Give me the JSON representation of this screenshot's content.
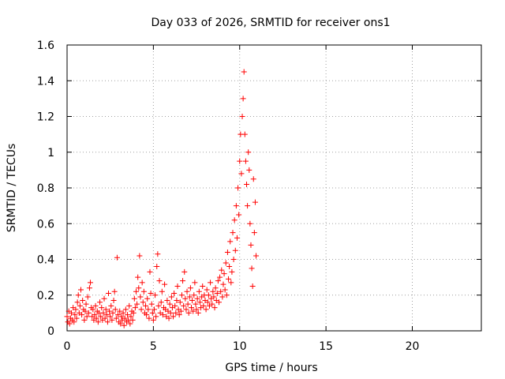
{
  "chart_data": {
    "type": "scatter",
    "title": "Day 033 of 2026, SRMTID for receiver ons1",
    "xlabel": "GPS time / hours",
    "ylabel": "SRMTID / TECUs",
    "xlim": [
      0,
      24
    ],
    "ylim": [
      0,
      1.6
    ],
    "xticks": [
      0,
      5,
      10,
      15,
      20
    ],
    "xtick_labels": [
      "0",
      "5",
      "10",
      "15",
      "20"
    ],
    "yticks": [
      0,
      0.2,
      0.4,
      0.6,
      0.8,
      1.0,
      1.2,
      1.4,
      1.6
    ],
    "ytick_labels": [
      "0",
      "0.2",
      "0.4",
      "0.6",
      "0.8",
      "1",
      "1.2",
      "1.4",
      "1.6"
    ],
    "grid": true,
    "marker": "+",
    "color": "#ff0000",
    "series": [
      {
        "name": "SRMTID",
        "points": [
          [
            0.0,
            0.08
          ],
          [
            0.05,
            0.05
          ],
          [
            0.1,
            0.11
          ],
          [
            0.15,
            0.04
          ],
          [
            0.2,
            0.07
          ],
          [
            0.25,
            0.1
          ],
          [
            0.3,
            0.06
          ],
          [
            0.35,
            0.13
          ],
          [
            0.4,
            0.05
          ],
          [
            0.45,
            0.09
          ],
          [
            0.5,
            0.12
          ],
          [
            0.55,
            0.07
          ],
          [
            0.6,
            0.16
          ],
          [
            0.65,
            0.2
          ],
          [
            0.7,
            0.1
          ],
          [
            0.75,
            0.14
          ],
          [
            0.8,
            0.23
          ],
          [
            0.85,
            0.09
          ],
          [
            0.9,
            0.17
          ],
          [
            0.95,
            0.12
          ],
          [
            1.0,
            0.06
          ],
          [
            1.05,
            0.11
          ],
          [
            1.1,
            0.15
          ],
          [
            1.15,
            0.08
          ],
          [
            1.2,
            0.19
          ],
          [
            1.25,
            0.1
          ],
          [
            1.3,
            0.24
          ],
          [
            1.35,
            0.27
          ],
          [
            1.4,
            0.13
          ],
          [
            1.45,
            0.08
          ],
          [
            1.5,
            0.12
          ],
          [
            1.55,
            0.06
          ],
          [
            1.6,
            0.09
          ],
          [
            1.65,
            0.14
          ],
          [
            1.7,
            0.07
          ],
          [
            1.75,
            0.11
          ],
          [
            1.8,
            0.05
          ],
          [
            1.85,
            0.1
          ],
          [
            1.9,
            0.16
          ],
          [
            1.95,
            0.08
          ],
          [
            2.0,
            0.13
          ],
          [
            2.05,
            0.06
          ],
          [
            2.1,
            0.1
          ],
          [
            2.15,
            0.18
          ],
          [
            2.2,
            0.07
          ],
          [
            2.25,
            0.12
          ],
          [
            2.3,
            0.09
          ],
          [
            2.35,
            0.05
          ],
          [
            2.4,
            0.21
          ],
          [
            2.45,
            0.11
          ],
          [
            2.5,
            0.08
          ],
          [
            2.55,
            0.14
          ],
          [
            2.6,
            0.06
          ],
          [
            2.65,
            0.1
          ],
          [
            2.7,
            0.17
          ],
          [
            2.75,
            0.22
          ],
          [
            2.8,
            0.12
          ],
          [
            2.85,
            0.07
          ],
          [
            2.9,
            0.41
          ],
          [
            2.95,
            0.09
          ],
          [
            3.0,
            0.05
          ],
          [
            3.05,
            0.11
          ],
          [
            3.1,
            0.04
          ],
          [
            3.15,
            0.08
          ],
          [
            3.2,
            0.06
          ],
          [
            3.25,
            0.1
          ],
          [
            3.3,
            0.03
          ],
          [
            3.35,
            0.07
          ],
          [
            3.4,
            0.12
          ],
          [
            3.45,
            0.05
          ],
          [
            3.5,
            0.09
          ],
          [
            3.55,
            0.06
          ],
          [
            3.6,
            0.14
          ],
          [
            3.65,
            0.04
          ],
          [
            3.7,
            0.08
          ],
          [
            3.75,
            0.11
          ],
          [
            3.8,
            0.06
          ],
          [
            3.85,
            0.1
          ],
          [
            3.9,
            0.18
          ],
          [
            3.95,
            0.13
          ],
          [
            4.0,
            0.22
          ],
          [
            4.05,
            0.15
          ],
          [
            4.1,
            0.3
          ],
          [
            4.15,
            0.24
          ],
          [
            4.2,
            0.42
          ],
          [
            4.25,
            0.19
          ],
          [
            4.3,
            0.12
          ],
          [
            4.35,
            0.27
          ],
          [
            4.4,
            0.16
          ],
          [
            4.45,
            0.22
          ],
          [
            4.5,
            0.1
          ],
          [
            4.55,
            0.14
          ],
          [
            4.6,
            0.09
          ],
          [
            4.65,
            0.18
          ],
          [
            4.7,
            0.12
          ],
          [
            4.75,
            0.07
          ],
          [
            4.8,
            0.33
          ],
          [
            4.85,
            0.21
          ],
          [
            4.9,
            0.15
          ],
          [
            4.95,
            0.1
          ],
          [
            5.0,
            0.06
          ],
          [
            5.05,
            0.12
          ],
          [
            5.1,
            0.2
          ],
          [
            5.15,
            0.08
          ],
          [
            5.2,
            0.36
          ],
          [
            5.25,
            0.43
          ],
          [
            5.3,
            0.14
          ],
          [
            5.35,
            0.28
          ],
          [
            5.4,
            0.1
          ],
          [
            5.45,
            0.16
          ],
          [
            5.5,
            0.22
          ],
          [
            5.55,
            0.09
          ],
          [
            5.6,
            0.13
          ],
          [
            5.65,
            0.26
          ],
          [
            5.7,
            0.12
          ],
          [
            5.75,
            0.08
          ],
          [
            5.8,
            0.17
          ],
          [
            5.85,
            0.11
          ],
          [
            5.9,
            0.07
          ],
          [
            5.95,
            0.15
          ],
          [
            6.0,
            0.1
          ],
          [
            6.05,
            0.19
          ],
          [
            6.1,
            0.13
          ],
          [
            6.15,
            0.08
          ],
          [
            6.2,
            0.21
          ],
          [
            6.25,
            0.14
          ],
          [
            6.3,
            0.1
          ],
          [
            6.35,
            0.17
          ],
          [
            6.4,
            0.25
          ],
          [
            6.45,
            0.12
          ],
          [
            6.5,
            0.09
          ],
          [
            6.55,
            0.16
          ],
          [
            6.6,
            0.11
          ],
          [
            6.65,
            0.2
          ],
          [
            6.7,
            0.28
          ],
          [
            6.75,
            0.14
          ],
          [
            6.8,
            0.33
          ],
          [
            6.85,
            0.18
          ],
          [
            6.9,
            0.12
          ],
          [
            6.95,
            0.22
          ],
          [
            7.0,
            0.15
          ],
          [
            7.05,
            0.1
          ],
          [
            7.1,
            0.19
          ],
          [
            7.15,
            0.24
          ],
          [
            7.2,
            0.13
          ],
          [
            7.25,
            0.17
          ],
          [
            7.3,
            0.11
          ],
          [
            7.35,
            0.2
          ],
          [
            7.4,
            0.27
          ],
          [
            7.45,
            0.15
          ],
          [
            7.5,
            0.12
          ],
          [
            7.55,
            0.18
          ],
          [
            7.6,
            0.1
          ],
          [
            7.65,
            0.22
          ],
          [
            7.7,
            0.16
          ],
          [
            7.75,
            0.13
          ],
          [
            7.8,
            0.19
          ],
          [
            7.85,
            0.25
          ],
          [
            7.9,
            0.14
          ],
          [
            7.95,
            0.2
          ],
          [
            8.0,
            0.17
          ],
          [
            8.05,
            0.12
          ],
          [
            8.1,
            0.23
          ],
          [
            8.15,
            0.16
          ],
          [
            8.2,
            0.2
          ],
          [
            8.25,
            0.14
          ],
          [
            8.3,
            0.27
          ],
          [
            8.35,
            0.18
          ],
          [
            8.4,
            0.15
          ],
          [
            8.45,
            0.22
          ],
          [
            8.5,
            0.19
          ],
          [
            8.55,
            0.13
          ],
          [
            8.6,
            0.24
          ],
          [
            8.65,
            0.17
          ],
          [
            8.7,
            0.21
          ],
          [
            8.75,
            0.28
          ],
          [
            8.8,
            0.16
          ],
          [
            8.85,
            0.3
          ],
          [
            8.9,
            0.22
          ],
          [
            8.95,
            0.34
          ],
          [
            9.0,
            0.19
          ],
          [
            9.05,
            0.26
          ],
          [
            9.1,
            0.32
          ],
          [
            9.15,
            0.23
          ],
          [
            9.2,
            0.38
          ],
          [
            9.25,
            0.2
          ],
          [
            9.3,
            0.44
          ],
          [
            9.35,
            0.29
          ],
          [
            9.4,
            0.36
          ],
          [
            9.45,
            0.5
          ],
          [
            9.5,
            0.27
          ],
          [
            9.55,
            0.33
          ],
          [
            9.6,
            0.55
          ],
          [
            9.65,
            0.4
          ],
          [
            9.7,
            0.62
          ],
          [
            9.75,
            0.45
          ],
          [
            9.8,
            0.7
          ],
          [
            9.85,
            0.52
          ],
          [
            9.9,
            0.8
          ],
          [
            9.95,
            0.65
          ],
          [
            10.0,
            0.95
          ],
          [
            10.05,
            1.1
          ],
          [
            10.1,
            0.88
          ],
          [
            10.15,
            1.2
          ],
          [
            10.2,
            1.3
          ],
          [
            10.25,
            1.45
          ],
          [
            10.3,
            1.1
          ],
          [
            10.35,
            0.95
          ],
          [
            10.4,
            0.82
          ],
          [
            10.45,
            0.7
          ],
          [
            10.5,
            1.0
          ],
          [
            10.55,
            0.9
          ],
          [
            10.6,
            0.6
          ],
          [
            10.65,
            0.48
          ],
          [
            10.7,
            0.35
          ],
          [
            10.75,
            0.25
          ],
          [
            10.8,
            0.85
          ],
          [
            10.85,
            0.55
          ],
          [
            10.9,
            0.72
          ],
          [
            10.95,
            0.42
          ]
        ]
      }
    ]
  }
}
